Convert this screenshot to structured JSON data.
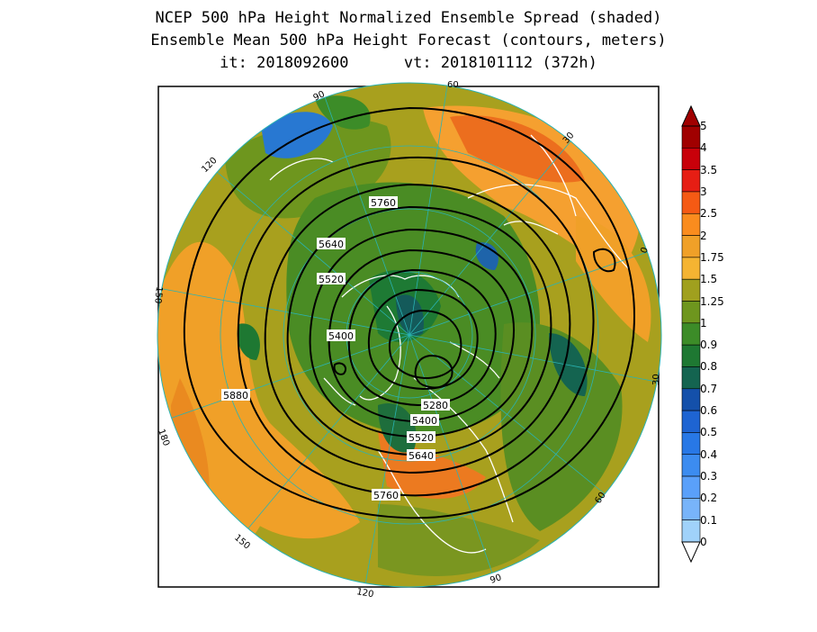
{
  "titles": {
    "line1": "NCEP 500 hPa Height Normalized Ensemble Spread (shaded)",
    "line2": "Ensemble Mean 500 hPa Height Forecast (contours, meters)",
    "line3": "it: 2018092600      vt: 2018101112 (372h)"
  },
  "meridian_labels": [
    "60",
    "30",
    "0",
    "30",
    "60",
    "90",
    "120",
    "150",
    "180",
    "150",
    "120",
    "90"
  ],
  "contour_labels": [
    "5760",
    "5640",
    "5520",
    "5400",
    "5880",
    "5280",
    "5400",
    "5520",
    "5640",
    "5760"
  ],
  "colorbar": {
    "labels": [
      "5",
      "4",
      "3.5",
      "3",
      "2.5",
      "2",
      "1.75",
      "1.5",
      "1.25",
      "1",
      "0.9",
      "0.8",
      "0.7",
      "0.6",
      "0.5",
      "0.4",
      "0.3",
      "0.2",
      "0.1",
      "0"
    ],
    "colors": [
      "#a00000",
      "#c8000a",
      "#e61e14",
      "#f55a14",
      "#fa8c1e",
      "#f0a028",
      "#f5b432",
      "#a0a01e",
      "#6e961e",
      "#3c8c28",
      "#1e7832",
      "#146450",
      "#1450aa",
      "#1e64d2",
      "#2878e6",
      "#3c8cf0",
      "#5aa0fa",
      "#78b4fa",
      "#a0d2fa"
    ],
    "top_arrow_color": "#a00000",
    "bottom_arrow_color": "#ffffff"
  }
}
